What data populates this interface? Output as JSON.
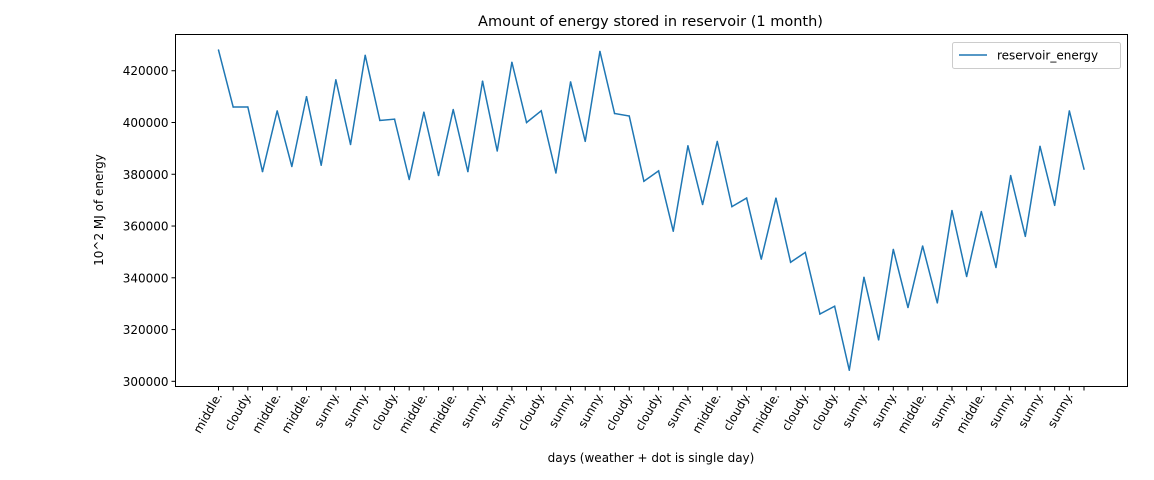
{
  "chart_data": {
    "type": "line",
    "title": "Amount of energy stored in reservoir (1 month)",
    "xlabel": "days (weather + dot is single day)",
    "ylabel": "10^2 MJ of energy",
    "ylim": [
      298000,
      434000
    ],
    "yticks": [
      300000,
      320000,
      340000,
      360000,
      380000,
      400000,
      420000
    ],
    "xtick_labels": [
      "middle.",
      "cloudy.",
      "middle.",
      "middle.",
      "sunny.",
      "sunny.",
      "cloudy.",
      "middle.",
      "middle.",
      "sunny.",
      "sunny.",
      "cloudy.",
      "sunny.",
      "sunny.",
      "cloudy.",
      "cloudy.",
      "sunny.",
      "middle.",
      "cloudy.",
      "middle.",
      "cloudy.",
      "cloudy.",
      "sunny.",
      "sunny.",
      "middle.",
      "sunny.",
      "middle.",
      "sunny.",
      "sunny.",
      "sunny."
    ],
    "grid": false,
    "legend_position": "upper right",
    "series": [
      {
        "name": "reservoir_energy",
        "color": "#1f77b4",
        "values": [
          428000,
          406000,
          406000,
          381000,
          404500,
          383000,
          410000,
          383500,
          416500,
          391500,
          426000,
          400800,
          401300,
          378000,
          404000,
          379500,
          405000,
          381000,
          416000,
          389000,
          423300,
          400000,
          404500,
          380500,
          415700,
          392700,
          427500,
          403500,
          402500,
          377300,
          381300,
          358000,
          391000,
          368300,
          392700,
          367500,
          370800,
          347200,
          370800,
          346000,
          349800,
          326000,
          329000,
          304300,
          340200,
          316000,
          351000,
          328500,
          352300,
          330300,
          366000,
          340500,
          365600,
          344000,
          379500,
          356000,
          390800,
          368000,
          404500,
          382000
        ]
      }
    ]
  }
}
